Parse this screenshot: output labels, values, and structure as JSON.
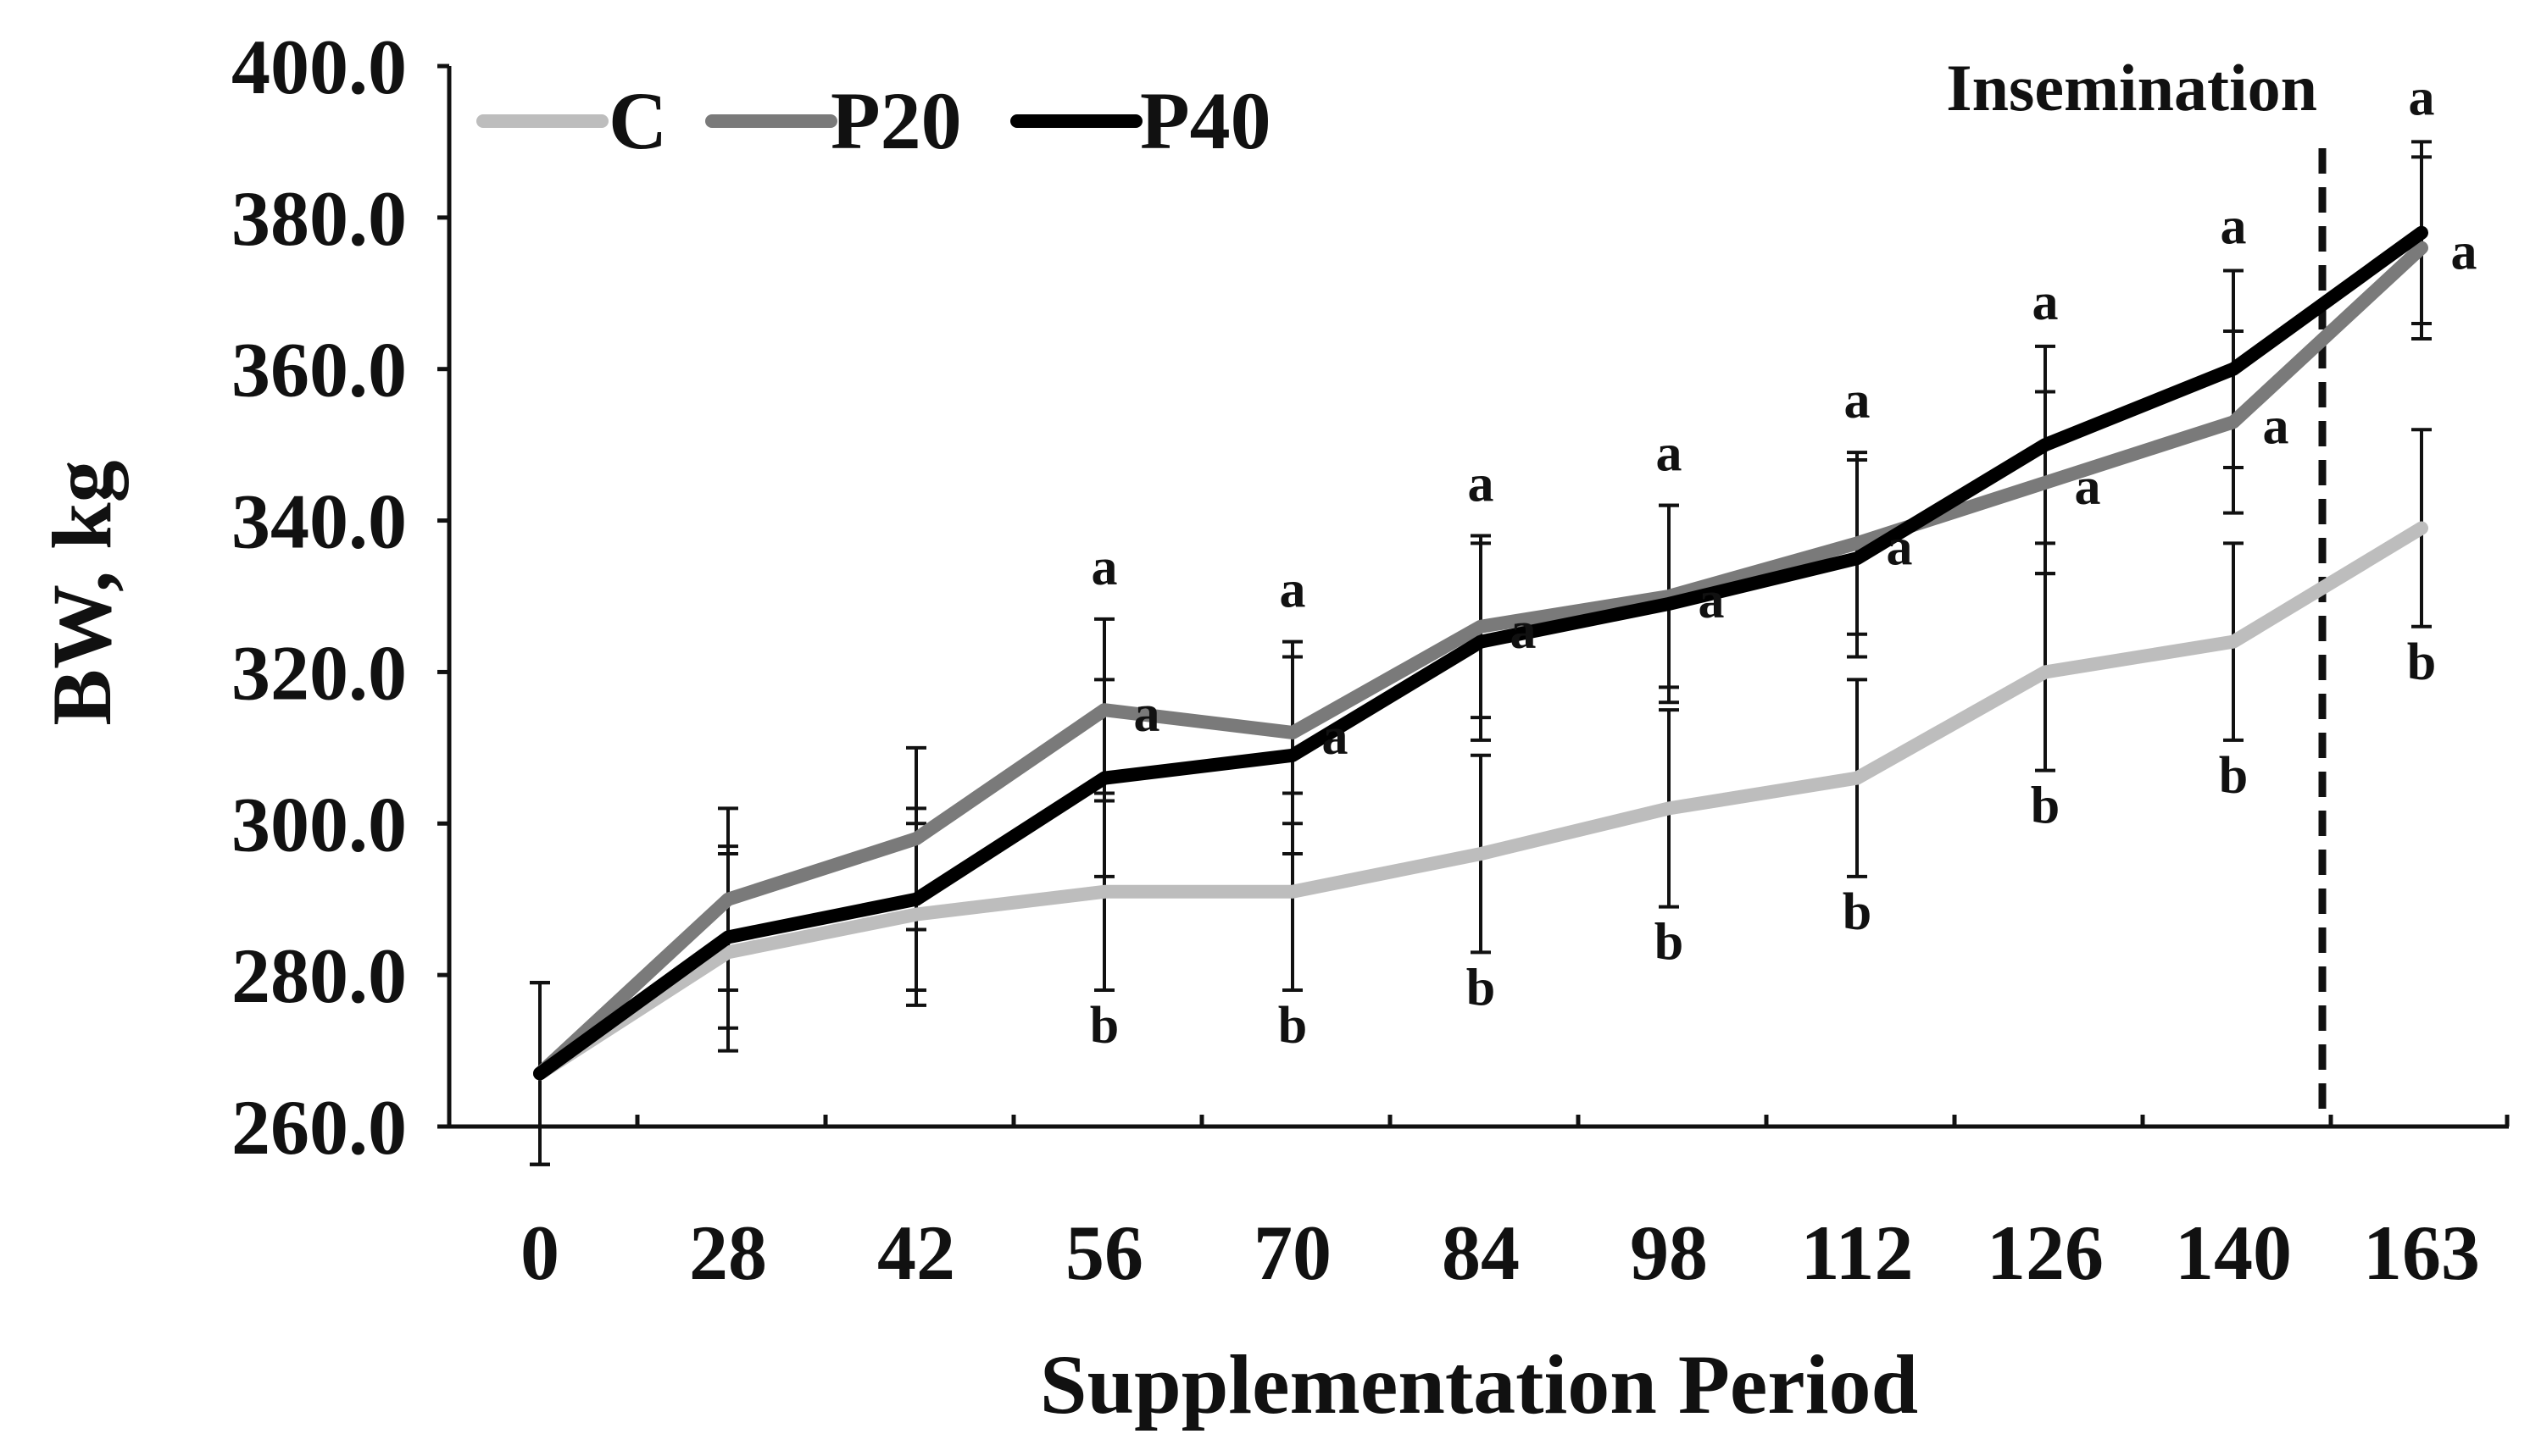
{
  "chart_data": {
    "type": "line",
    "xlabel": "Supplementation Period",
    "ylabel": "BW, kg",
    "ylim": [
      260,
      400
    ],
    "y_ticks": [
      "260.0",
      "280.0",
      "300.0",
      "320.0",
      "340.0",
      "360.0",
      "380.0",
      "400.0"
    ],
    "categories": [
      "0",
      "28",
      "42",
      "56",
      "70",
      "84",
      "98",
      "112",
      "126",
      "140",
      "163"
    ],
    "grid": false,
    "legend_position": "top-left",
    "series": [
      {
        "name": "C",
        "color": "#bdbdbd",
        "values": [
          267,
          283,
          288,
          291,
          291,
          296,
          302,
          306,
          320,
          324,
          339
        ],
        "error": [
          12,
          13,
          12,
          13,
          13,
          13,
          13,
          13,
          13,
          13,
          13
        ],
        "letters": [
          "",
          "",
          "",
          "b",
          "b",
          "b",
          "b",
          "b",
          "b",
          "b",
          "b"
        ]
      },
      {
        "name": "P20",
        "color": "#7a7a7a",
        "values": [
          267,
          290,
          298,
          315,
          312,
          326,
          330,
          337,
          345,
          353,
          376
        ],
        "error": [
          12,
          12,
          12,
          12,
          12,
          12,
          12,
          12,
          12,
          12,
          12
        ],
        "letters": [
          "",
          "",
          "",
          "a",
          "a",
          "a",
          "a",
          "a",
          "a",
          "a",
          "a"
        ]
      },
      {
        "name": "P40",
        "color": "#000000",
        "values": [
          267,
          285,
          290,
          306,
          309,
          324,
          329,
          335,
          350,
          360,
          378
        ],
        "error": [
          12,
          12,
          12,
          13,
          13,
          13,
          13,
          13,
          13,
          13,
          12
        ],
        "letters": [
          "",
          "",
          "",
          "a",
          "a",
          "a",
          "a",
          "a",
          "a",
          "a",
          "a"
        ]
      }
    ],
    "marker_line": {
      "label": "Insemination",
      "position_between": [
        "140",
        "163"
      ],
      "style": "dashed"
    }
  }
}
